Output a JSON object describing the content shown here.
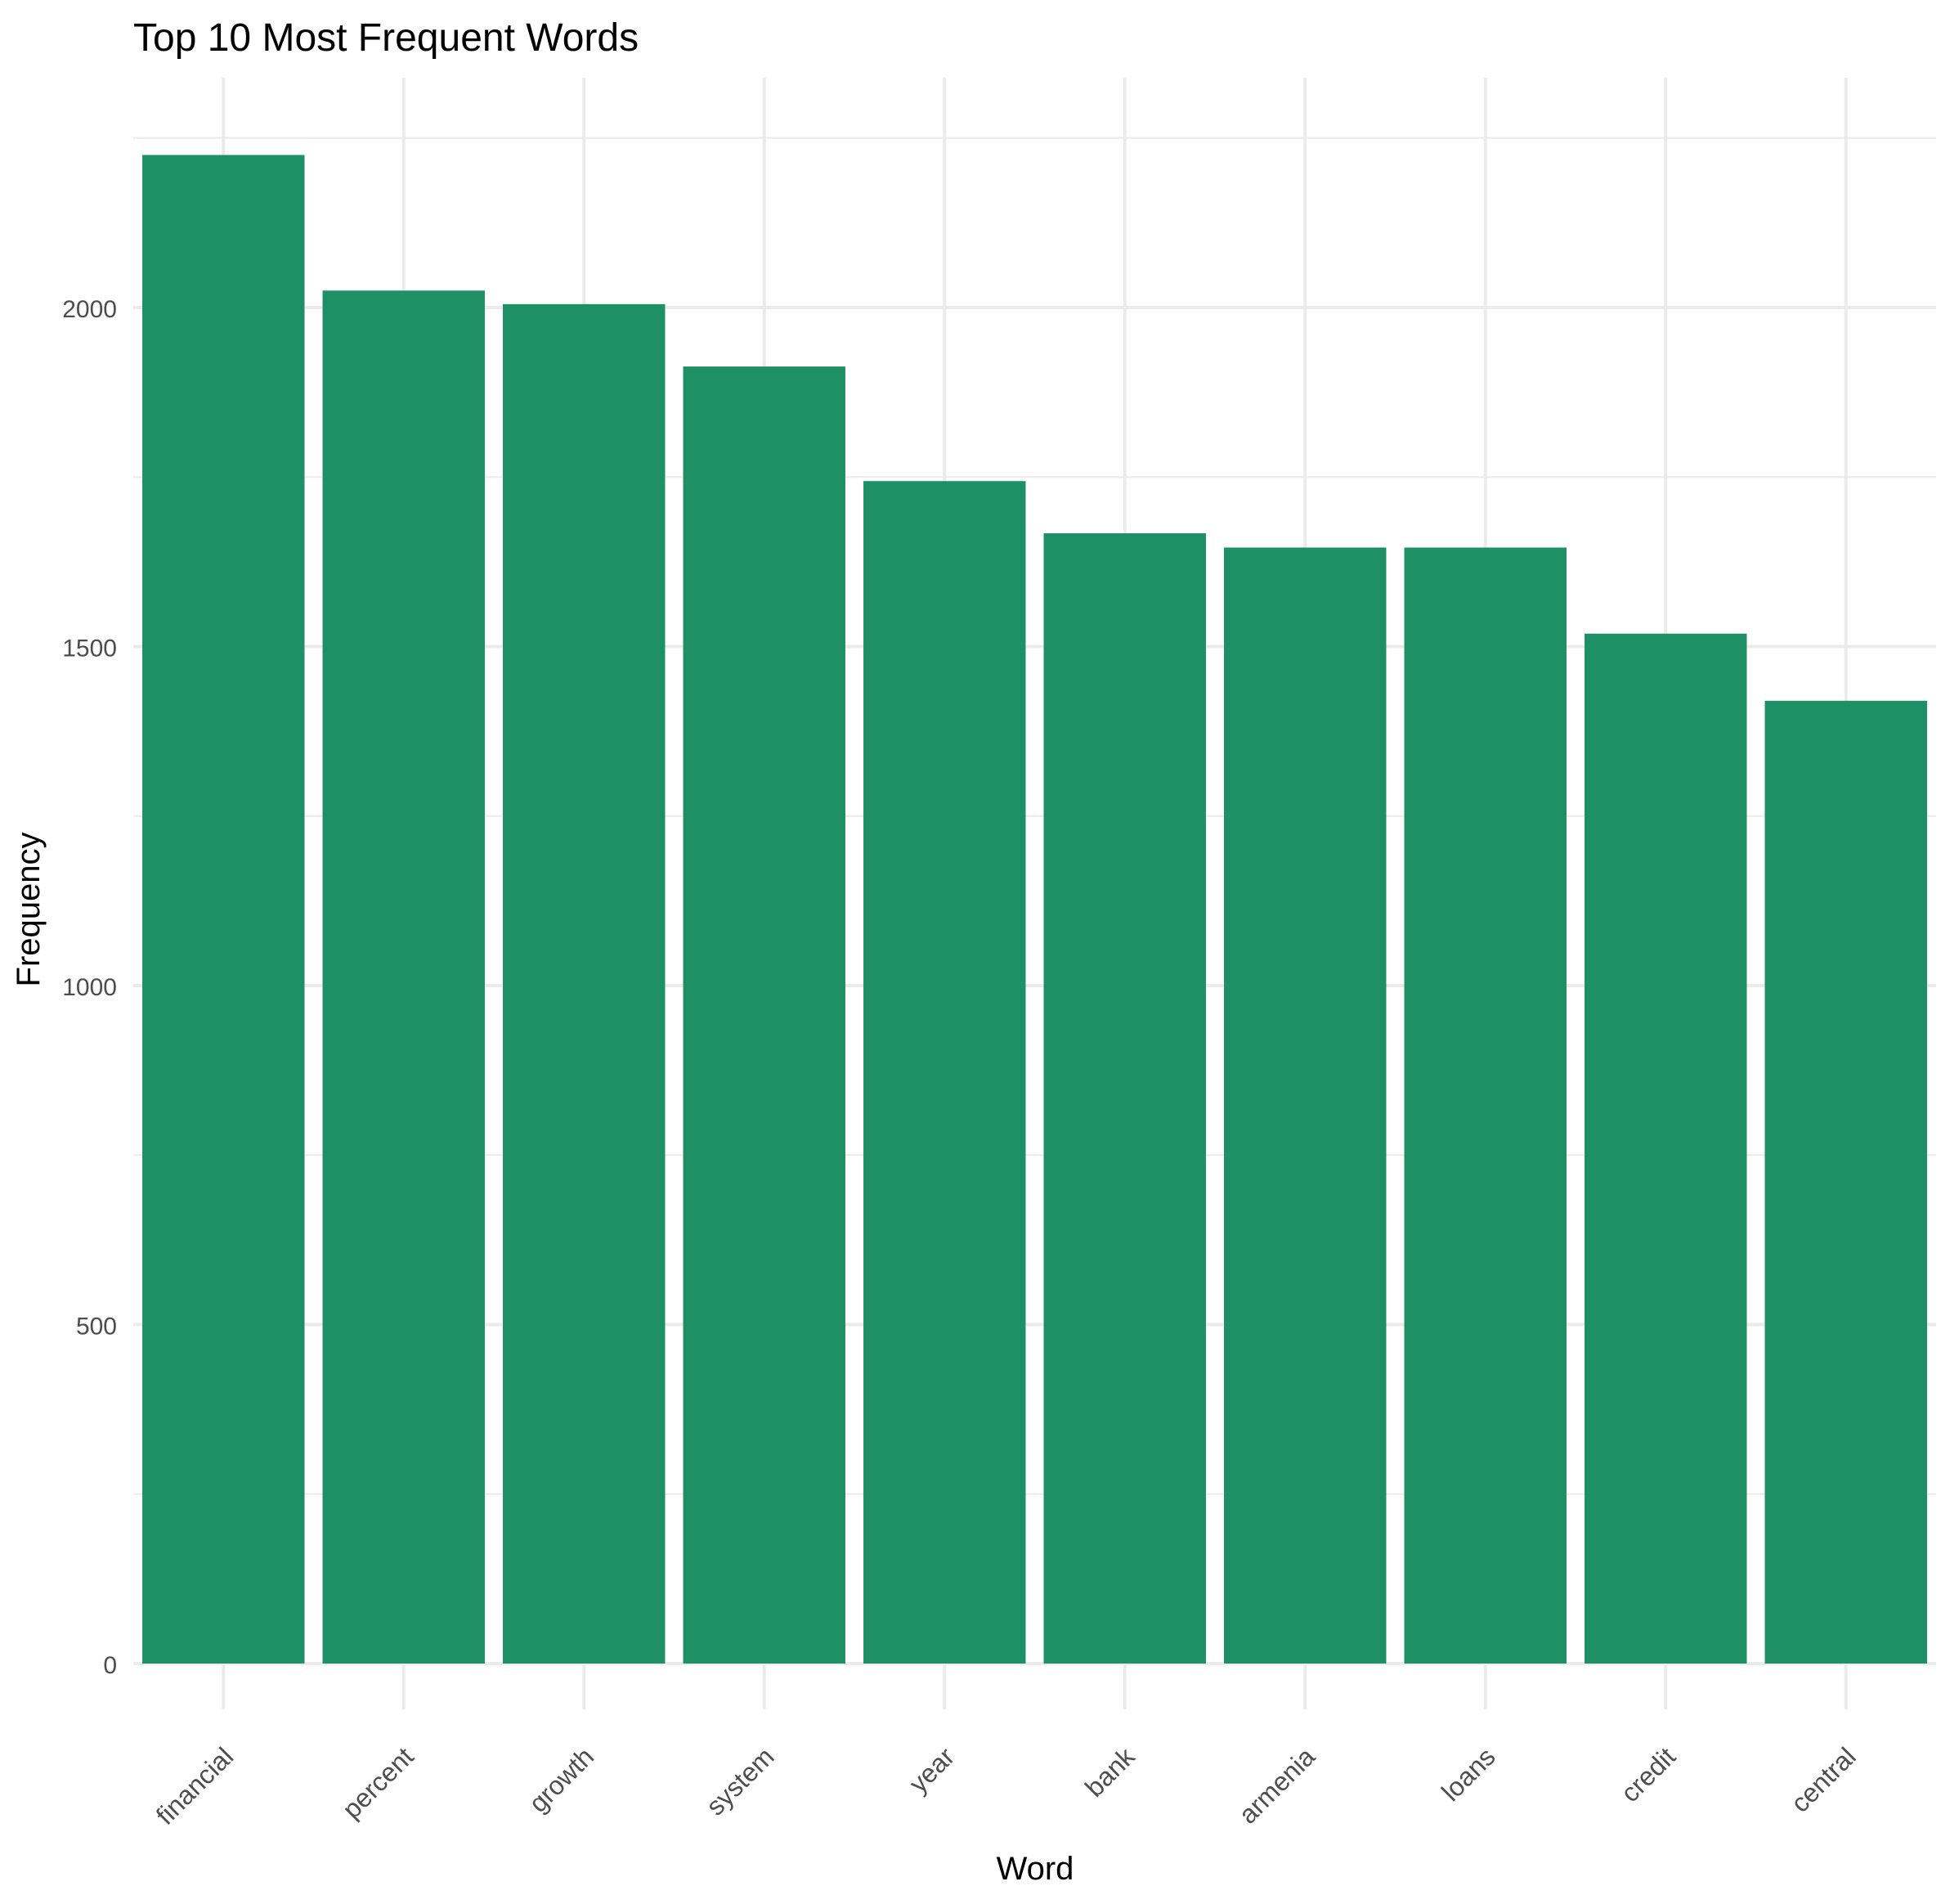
{
  "chart_data": {
    "type": "bar",
    "title": "Top 10 Most Frequent Words",
    "xlabel": "Word",
    "ylabel": "Frequency",
    "categories": [
      "financial",
      "percent",
      "growth",
      "system",
      "year",
      "bank",
      "armenia",
      "loans",
      "credit",
      "central"
    ],
    "values": [
      2225,
      2025,
      2005,
      1913,
      1744,
      1667,
      1646,
      1646,
      1519,
      1420
    ],
    "ylim": [
      0,
      2300
    ],
    "yticks": [
      0,
      500,
      1000,
      1500,
      2000
    ],
    "ytick_labels": [
      "0",
      "500",
      "1000",
      "1500",
      "2000"
    ],
    "grid": true,
    "legend": "none",
    "bar_color": "#1f8f66",
    "grid_color": "#ebebeb"
  }
}
